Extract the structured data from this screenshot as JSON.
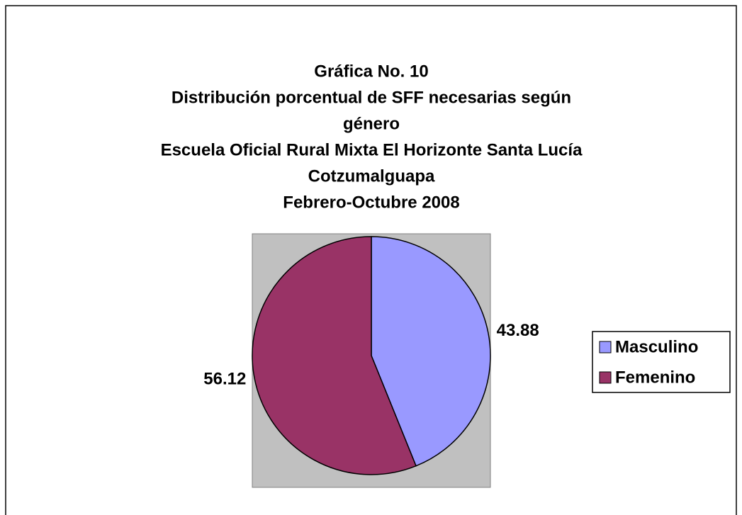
{
  "chart_data": {
    "type": "pie",
    "title": [
      "Gráfica No. 10",
      "Distribución porcentual de SFF necesarias según",
      "género",
      "Escuela Oficial Rural Mixta El Horizonte Santa Lucía",
      "Cotzumalguapa",
      "Febrero-Octubre 2008"
    ],
    "categories": [
      "Masculino",
      "Femenino"
    ],
    "values": [
      43.88,
      56.12
    ],
    "colors": [
      "#9999ff",
      "#993366"
    ],
    "legend": "right"
  }
}
